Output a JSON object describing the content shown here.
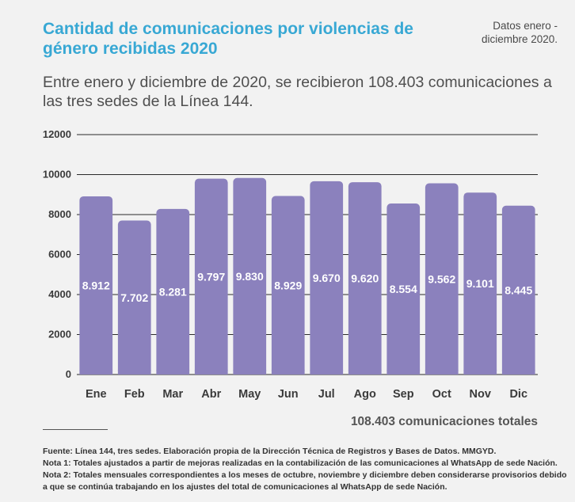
{
  "header": {
    "title": "Cantidad de comunicaciones por violencias de género recibidas 2020",
    "period": "Datos enero -diciembre 2020.",
    "subtitle": "Entre enero y diciembre de 2020, se recibieron 108.403 comunicaciones a las tres sedes de la Línea 144."
  },
  "chart_data": {
    "type": "bar",
    "categories": [
      "Ene",
      "Feb",
      "Mar",
      "Abr",
      "May",
      "Jun",
      "Jul",
      "Ago",
      "Sep",
      "Oct",
      "Nov",
      "Dic"
    ],
    "values": [
      8912,
      7702,
      8281,
      9797,
      9830,
      8929,
      9670,
      9620,
      8554,
      9562,
      9101,
      8445
    ],
    "value_labels": [
      "8.912",
      "7.702",
      "8.281",
      "9.797",
      "9.830",
      "8.929",
      "9.670",
      "9.620",
      "8.554",
      "9.562",
      "9.101",
      "8.445"
    ],
    "ylim": [
      0,
      12000
    ],
    "yticks": [
      0,
      2000,
      4000,
      6000,
      8000,
      10000,
      12000
    ],
    "grid": true,
    "bar_color": "#8b81bd",
    "title": "",
    "xlabel": "",
    "ylabel": ""
  },
  "total_label": "108.403 comunicaciones totales",
  "notes": [
    "Fuente: Línea 144, tres sedes. Elaboración propia de la Dirección Técnica de Registros y Bases de Datos. MMGYD.",
    "Nota 1: Totales ajustados a partir de mejoras realizadas en la contabilización de las comunicaciones al WhatsApp de sede Nación.",
    "Nota 2: Totales mensuales correspondientes a los meses de octubre, noviembre y diciembre deben considerarse provisorios debido a que se continúa trabajando en los ajustes del total de comunicaciones al WhatsApp de sede Nación."
  ]
}
